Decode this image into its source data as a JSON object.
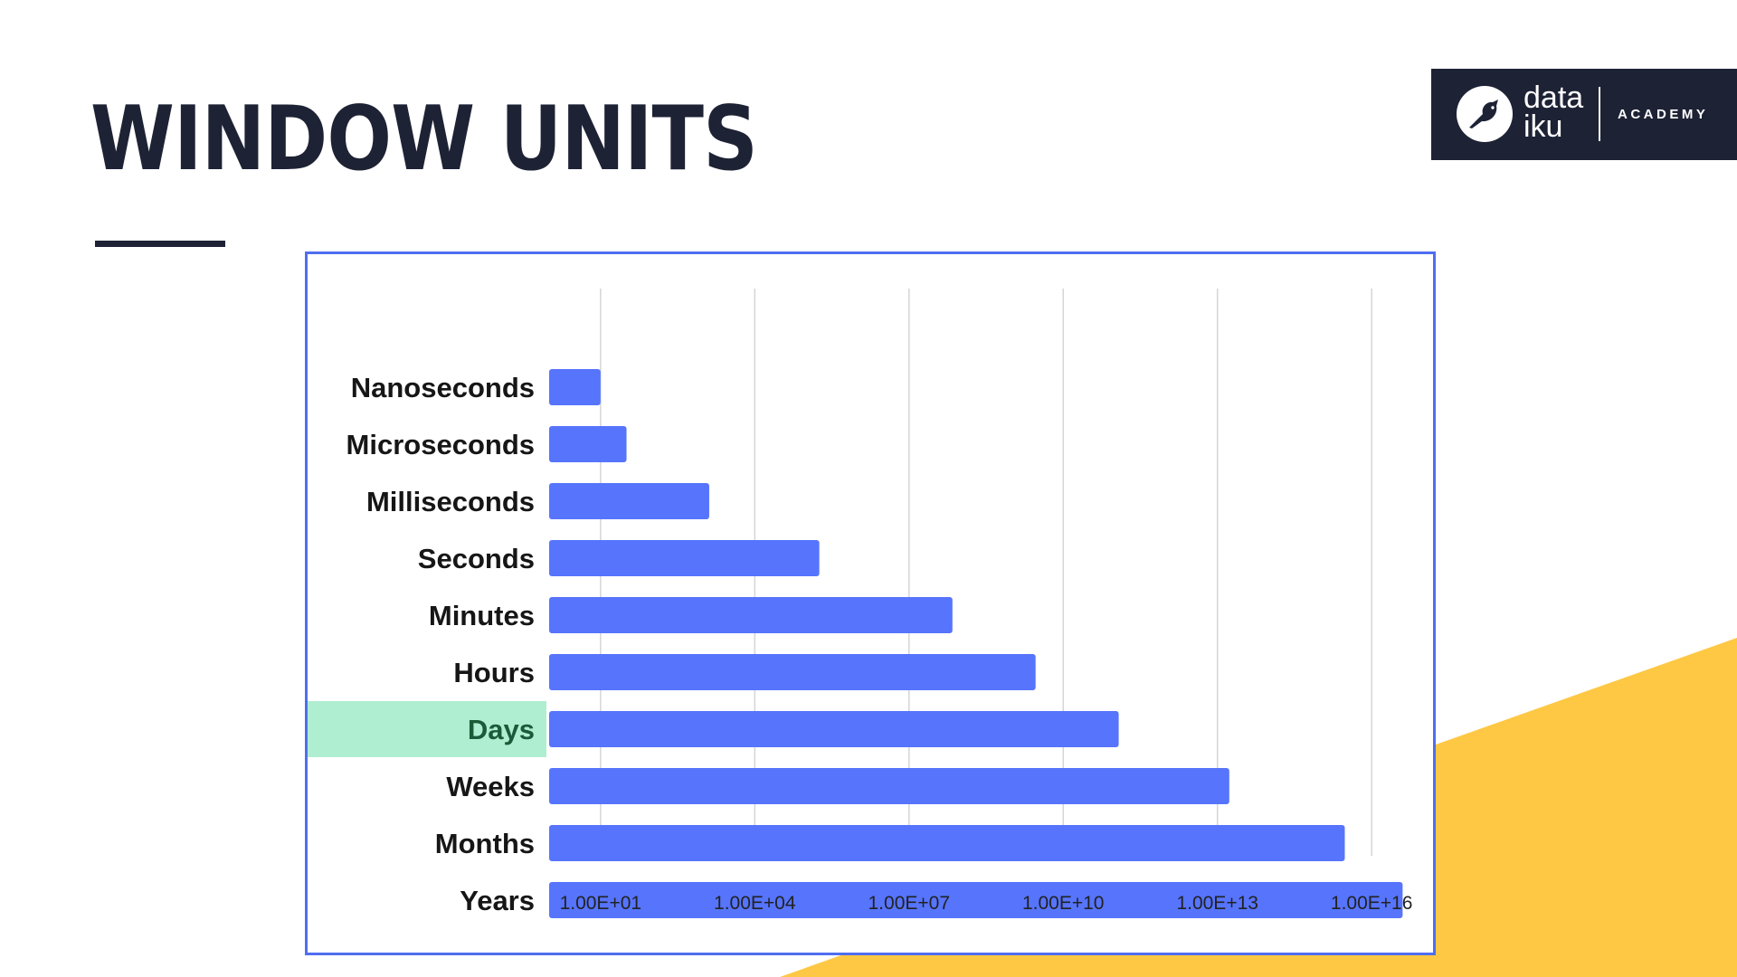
{
  "slide": {
    "title": "WINDOW UNITS"
  },
  "logo": {
    "brand": "data iku",
    "subtitle": "ACADEMY",
    "icon": "bird-icon"
  },
  "colors": {
    "navy": "#1e2235",
    "bar": "#5674fc",
    "highlight_bg": "#b0eed1",
    "highlight_text": "#1a5c3a",
    "accent_yellow": "#fec844",
    "frame": "#4f6ef0"
  },
  "chart_data": {
    "type": "bar",
    "orientation": "horizontal",
    "x_scale": "log10",
    "categories": [
      "Nanoseconds",
      "Microseconds",
      "Milliseconds",
      "Seconds",
      "Minutes",
      "Hours",
      "Days",
      "Weeks",
      "Months",
      "Years"
    ],
    "values": [
      10,
      32.0,
      1300.0,
      180000.0,
      70000000.0,
      2900000000.0,
      120000000000.0,
      17000000000000.0,
      3000000000000000.0,
      4e+16
    ],
    "highlighted_category": "Days",
    "x_ticks": [
      10,
      10000,
      10000000,
      10000000000,
      10000000000000,
      10000000000000000
    ],
    "x_tick_labels": [
      "1.00E+01",
      "1.00E+04",
      "1.00E+07",
      "1.00E+10",
      "1.00E+13",
      "1.00E+16"
    ],
    "xlim": [
      1,
      1e+17
    ],
    "grid": true,
    "legend": "none"
  }
}
